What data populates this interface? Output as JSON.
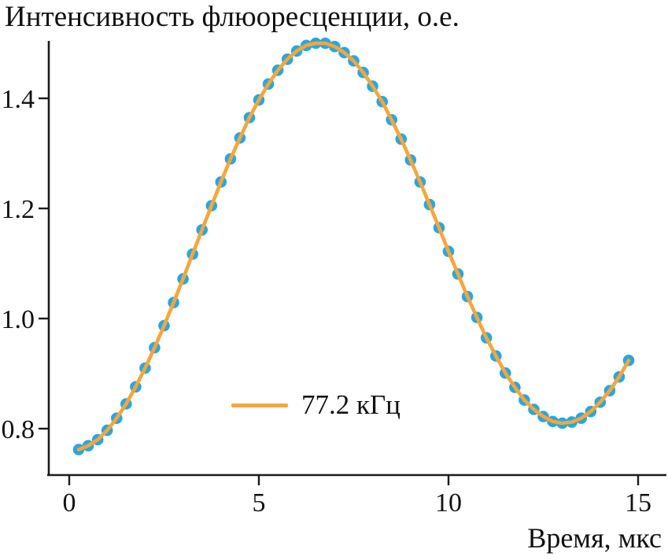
{
  "chart": {
    "colors": {
      "scatter": "#2BA6DE",
      "line": "#F6A63C",
      "axis": "#1A1A1A",
      "text": "#111111"
    }
  },
  "chart_data": {
    "type": "scatter",
    "title": "Интенсивность флюоресценции, о.е.",
    "xlabel": "Время, мкс",
    "ylabel": "",
    "legend_label": "77.2 кГц",
    "legend_position": "lower center-left",
    "grid": false,
    "xlim": [
      -0.6,
      15.7
    ],
    "ylim": [
      0.72,
      1.52
    ],
    "xticks": [
      0,
      5,
      10,
      15
    ],
    "xtick_labels": [
      "0",
      "5",
      "10",
      "15"
    ],
    "yticks": [
      0.8,
      1.0,
      1.2,
      1.4
    ],
    "ytick_labels": [
      "0.8",
      "1.0",
      "1.2",
      "1.4"
    ],
    "x": [
      0.25,
      0.5,
      0.75,
      1.0,
      1.25,
      1.5,
      1.75,
      2.0,
      2.25,
      2.5,
      2.75,
      3.0,
      3.25,
      3.5,
      3.75,
      4.0,
      4.25,
      4.5,
      4.75,
      5.0,
      5.25,
      5.5,
      5.75,
      6.0,
      6.25,
      6.5,
      6.75,
      7.0,
      7.25,
      7.5,
      7.75,
      8.0,
      8.25,
      8.5,
      8.75,
      9.0,
      9.25,
      9.5,
      9.75,
      10.0,
      10.25,
      10.5,
      10.75,
      11.0,
      11.25,
      11.5,
      11.75,
      12.0,
      12.25,
      12.5,
      12.75,
      13.0,
      13.25,
      13.5,
      13.75,
      14.0,
      14.25,
      14.5,
      14.75
    ],
    "y": [
      0.762,
      0.769,
      0.78,
      0.797,
      0.819,
      0.845,
      0.876,
      0.91,
      0.947,
      0.987,
      1.029,
      1.072,
      1.117,
      1.161,
      1.205,
      1.248,
      1.29,
      1.328,
      1.365,
      1.397,
      1.426,
      1.451,
      1.471,
      1.486,
      1.496,
      1.5,
      1.5,
      1.494,
      1.483,
      1.468,
      1.447,
      1.422,
      1.394,
      1.361,
      1.326,
      1.288,
      1.248,
      1.207,
      1.165,
      1.122,
      1.081,
      1.04,
      1.002,
      0.965,
      0.932,
      0.901,
      0.875,
      0.852,
      0.835,
      0.822,
      0.813,
      0.81,
      0.812,
      0.819,
      0.831,
      0.848,
      0.869,
      0.894,
      0.924
    ]
  }
}
